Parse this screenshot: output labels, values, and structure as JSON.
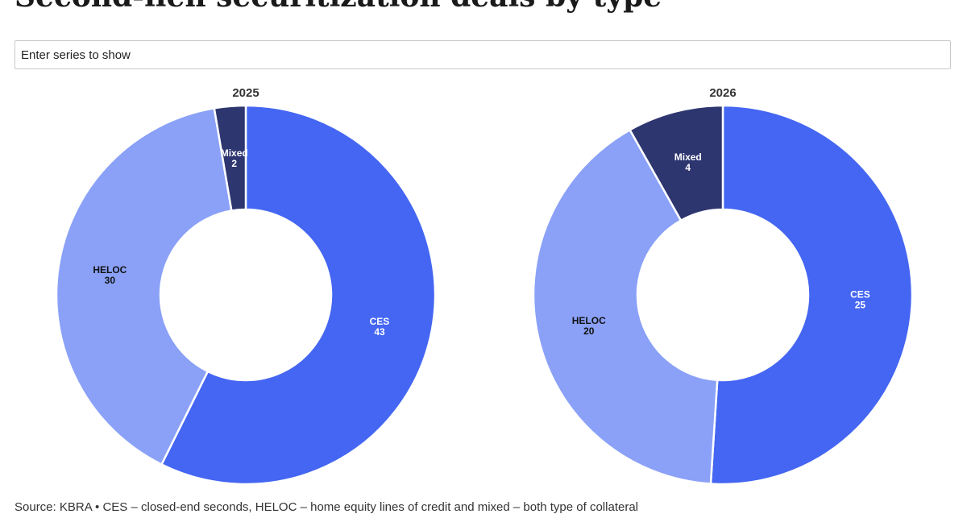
{
  "page": {
    "title": "Second-lien securitization deals by type",
    "series_input": {
      "placeholder": "Enter series to show"
    },
    "source": "Source: KBRA • CES – closed-end seconds, HELOC – home equity lines of credit and mixed – both type of collateral"
  },
  "colors": {
    "CES": "#4466f2",
    "HELOC": "#8aa1f7",
    "Mixed": "#2e3670",
    "border": "#ffffff"
  },
  "chart_data": [
    {
      "type": "pie",
      "title": "2025",
      "donut": true,
      "categories": [
        "CES",
        "HELOC",
        "Mixed"
      ],
      "values": [
        43,
        30,
        2
      ],
      "labels": [
        "CES 43",
        "HELOC 30",
        "Mixed 2"
      ],
      "start": "top, clockwise"
    },
    {
      "type": "pie",
      "title": "2026",
      "donut": true,
      "categories": [
        "CES",
        "HELOC",
        "Mixed"
      ],
      "values": [
        25,
        20,
        4
      ],
      "labels": [
        "CES 25",
        "HELOC 20",
        "Mixed 4"
      ],
      "start": "top, clockwise"
    }
  ]
}
